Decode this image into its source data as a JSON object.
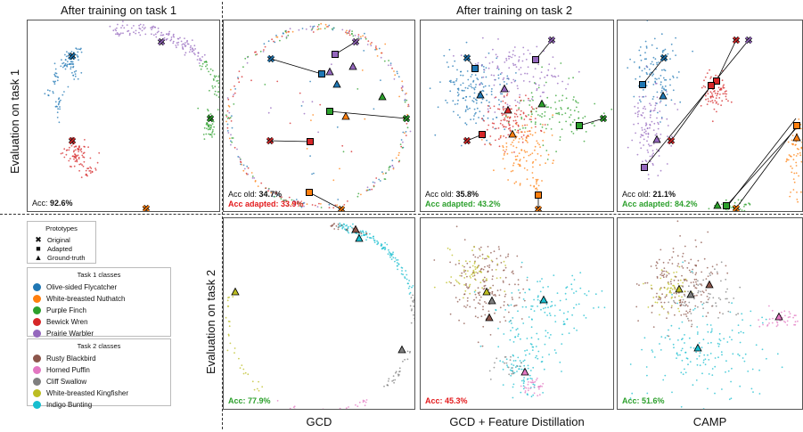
{
  "headers": {
    "task1": "After training on task 1",
    "task2": "After training on task 2"
  },
  "row_labels": {
    "row1": "Evaluation on task 1",
    "row2": "Evaluation on task 2"
  },
  "col_labels": {
    "gcd": "GCD",
    "gcd_fd": "GCD + Feature Distillation",
    "camp": "CAMP"
  },
  "legend": {
    "prototypes_title": "Prototypes",
    "prototypes": [
      {
        "label": "Original",
        "icon": "x-marker-icon",
        "glyph": "✖"
      },
      {
        "label": "Adapted",
        "icon": "square-marker-icon",
        "glyph": "■"
      },
      {
        "label": "Ground-truth",
        "icon": "triangle-marker-icon",
        "glyph": "▲"
      }
    ],
    "task1_title": "Task 1 classes",
    "task1_classes": [
      {
        "label": "Olive-sided Flycatcher",
        "color": "#1f77b4"
      },
      {
        "label": "White-breasted Nuthatch",
        "color": "#ff7f0e"
      },
      {
        "label": "Purple Finch",
        "color": "#2ca02c"
      },
      {
        "label": "Bewick Wren",
        "color": "#d62728"
      },
      {
        "label": "Prairie Warbler",
        "color": "#9467bd"
      }
    ],
    "task2_title": "Task 2 classes",
    "task2_classes": [
      {
        "label": "Rusty Blackbird",
        "color": "#8c564b"
      },
      {
        "label": "Horned Puffin",
        "color": "#e377c2"
      },
      {
        "label": "Cliff Swallow",
        "color": "#7f7f7f"
      },
      {
        "label": "White-breasted Kingfisher",
        "color": "#bcbd22"
      },
      {
        "label": "Indigo Bunting",
        "color": "#17becf"
      }
    ]
  },
  "accuracy": {
    "p1": {
      "label": "Acc:",
      "value": "92.6%",
      "color": "#111111"
    },
    "p2": {
      "old_label": "Acc old:",
      "old_value": "34.7%",
      "adapted_text": "Acc adapted: 33.9%",
      "adapted_color": "#e31a1c"
    },
    "p3": {
      "old_label": "Acc old:",
      "old_value": "35.8%",
      "adapted_text": "Acc adapted: 43.2%",
      "adapted_color": "#2ca02c"
    },
    "p4": {
      "old_label": "Acc old:",
      "old_value": "21.1%",
      "adapted_text": "Acc adapted: 84.2%",
      "adapted_color": "#2ca02c"
    },
    "p5": {
      "text": "Acc: 77.9%",
      "color": "#2ca02c"
    },
    "p6": {
      "text": "Acc: 45.3%",
      "color": "#e31a1c"
    },
    "p7": {
      "text": "Acc: 51.6%",
      "color": "#2ca02c"
    }
  },
  "chart_data": [
    {
      "type": "scatter",
      "title": "After training on task 1 / Evaluation on task 1",
      "series_classes": [
        "Olive-sided Flycatcher",
        "White-breasted Nuthatch",
        "Purple Finch",
        "Bewick Wren",
        "Prairie Warbler"
      ],
      "accuracy": 92.6
    },
    {
      "type": "scatter",
      "title": "GCD / Evaluation on task 1",
      "acc_old": 34.7,
      "acc_adapted": 33.9
    },
    {
      "type": "scatter",
      "title": "GCD + Feature Distillation / Evaluation on task 1",
      "acc_old": 35.8,
      "acc_adapted": 43.2
    },
    {
      "type": "scatter",
      "title": "CAMP / Evaluation on task 1",
      "acc_old": 21.1,
      "acc_adapted": 84.2
    },
    {
      "type": "scatter",
      "title": "GCD / Evaluation on task 2",
      "series_classes": [
        "Rusty Blackbird",
        "Horned Puffin",
        "Cliff Swallow",
        "White-breasted Kingfisher",
        "Indigo Bunting"
      ],
      "accuracy": 77.9
    },
    {
      "type": "scatter",
      "title": "GCD + Feature Distillation / Evaluation on task 2",
      "accuracy": 45.3
    },
    {
      "type": "scatter",
      "title": "CAMP / Evaluation on task 2",
      "accuracy": 51.6
    }
  ]
}
